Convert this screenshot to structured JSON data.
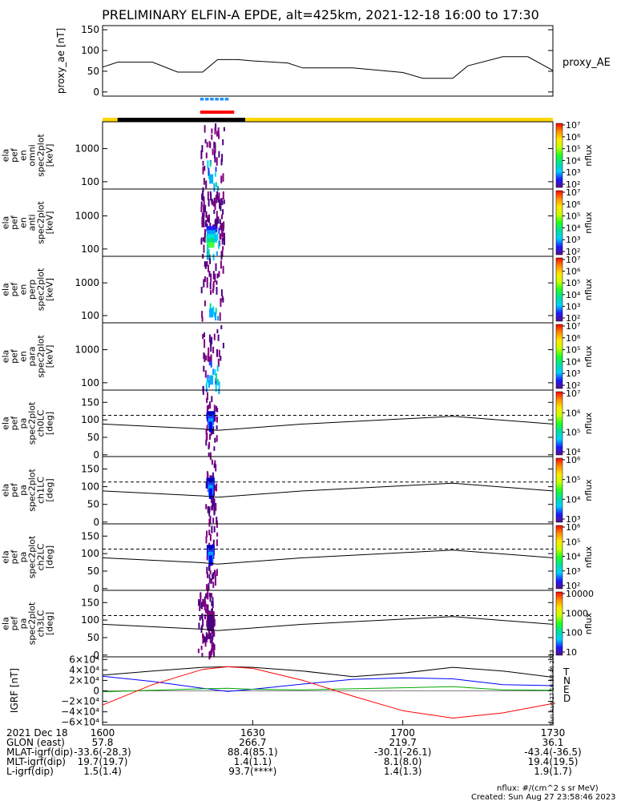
{
  "title": "PRELIMINARY ELFIN-A EPDE, alt=425km, 2021-12-18 16:00 to 17:30",
  "colors": {
    "trace": "#000000",
    "dash_blue": "#1e90ff",
    "bar_red": "#ff0000",
    "bar_yellow": "#ffd700",
    "bar_black": "#000000",
    "T": "#000000",
    "N": "#0000ff",
    "E": "#00aa00",
    "D": "#ff0000"
  },
  "colorbar_stops": [
    "#5a0d8f",
    "#1a1aff",
    "#00cfff",
    "#00e0a0",
    "#20ff20",
    "#c8ff00",
    "#ffe600",
    "#ff8c00",
    "#ff0000"
  ],
  "chart_data": [
    {
      "type": "line",
      "panel": "proxy_ae",
      "ylabel": "proxy_ae [nT]",
      "legend": "proxy_AE",
      "ylim": [
        -10,
        160
      ],
      "yticks": [
        "0",
        "50",
        "100",
        "150"
      ],
      "x_minutes": [
        0,
        3,
        10,
        15,
        20,
        23,
        27,
        30,
        37,
        40,
        50,
        60,
        64,
        70,
        73,
        80,
        85,
        90
      ],
      "values": [
        60,
        72,
        72,
        48,
        48,
        78,
        78,
        75,
        70,
        58,
        58,
        47,
        33,
        33,
        63,
        85,
        85,
        52
      ]
    },
    {
      "type": "heatmap",
      "panel": "en omni",
      "ylabel": [
        "ela",
        "pef",
        "en",
        "omni",
        "spec2plot",
        "[keV]"
      ],
      "yscale": "log",
      "ylim": [
        60,
        6500
      ],
      "yticks": [
        "100",
        "1000"
      ],
      "zlabel": "nflux",
      "zticks": [
        "10²",
        "10³",
        "10⁴",
        "10⁵",
        "10⁶",
        "10⁷"
      ]
    },
    {
      "type": "heatmap",
      "panel": "en anti",
      "ylabel": [
        "ela",
        "pef",
        "en",
        "anti",
        "spec2plot",
        "[keV]"
      ],
      "yscale": "log",
      "ylim": [
        60,
        6500
      ],
      "yticks": [
        "100",
        "1000"
      ],
      "zlabel": "nflux",
      "zticks": [
        "10²",
        "10³",
        "10⁴",
        "10⁵",
        "10⁶",
        "10⁷"
      ]
    },
    {
      "type": "heatmap",
      "panel": "en perp",
      "ylabel": [
        "ela",
        "pef",
        "en",
        "perp",
        "spec2plot",
        "[keV]"
      ],
      "yscale": "log",
      "ylim": [
        60,
        6500
      ],
      "yticks": [
        "100",
        "1000"
      ],
      "zlabel": "nflux",
      "zticks": [
        "10²",
        "10³",
        "10⁴",
        "10⁵",
        "10⁶",
        "10⁷"
      ]
    },
    {
      "type": "heatmap",
      "panel": "en para",
      "ylabel": [
        "ela",
        "pef",
        "en",
        "para",
        "spec2plot",
        "[keV]"
      ],
      "yscale": "log",
      "ylim": [
        60,
        6500
      ],
      "yticks": [
        "100",
        "1000"
      ],
      "zlabel": "nflux",
      "zticks": [
        "10²",
        "10³",
        "10⁴",
        "10⁵",
        "10⁶",
        "10⁷"
      ]
    },
    {
      "type": "heatmap",
      "panel": "pa ch0LC",
      "ylabel": [
        "ela",
        "pef",
        "pa",
        "spec2plot",
        "ch0LC",
        "[deg]"
      ],
      "yscale": "linear",
      "ylim": [
        -5,
        185
      ],
      "yticks": [
        "0",
        "50",
        "100",
        "150"
      ],
      "zlabel": "nflux",
      "zticks": [
        "10⁴",
        "10⁵",
        "10⁶",
        "10⁷"
      ]
    },
    {
      "type": "heatmap",
      "panel": "pa ch1LC",
      "ylabel": [
        "ela",
        "pef",
        "pa",
        "spec2plot",
        "ch1LC",
        "[deg]"
      ],
      "yscale": "linear",
      "ylim": [
        -5,
        185
      ],
      "yticks": [
        "0",
        "50",
        "100",
        "150"
      ],
      "zlabel": "nflux",
      "zticks": [
        "10³",
        "10⁴",
        "10⁵",
        "10⁶"
      ]
    },
    {
      "type": "heatmap",
      "panel": "pa ch2LC",
      "ylabel": [
        "ela",
        "pef",
        "pa",
        "spec2plot",
        "ch2LC",
        "[deg]"
      ],
      "yscale": "linear",
      "ylim": [
        -5,
        185
      ],
      "yticks": [
        "0",
        "50",
        "100",
        "150"
      ],
      "zlabel": "nflux",
      "zticks": [
        "10²",
        "10³",
        "10⁴",
        "10⁵",
        "10⁶"
      ]
    },
    {
      "type": "heatmap",
      "panel": "pa ch3LC",
      "ylabel": [
        "ela",
        "pef",
        "pa",
        "spec2plot",
        "ch3LC",
        "[deg]"
      ],
      "yscale": "linear",
      "ylim": [
        -5,
        185
      ],
      "yticks": [
        "0",
        "50",
        "100",
        "150"
      ],
      "zlabel": "nflux",
      "zticks": [
        "10",
        "100",
        "1000",
        "10000"
      ]
    },
    {
      "type": "line",
      "panel": "IGRF",
      "ylabel": "IGRF [nT]",
      "ylim": [
        -65000,
        65000
      ],
      "yticks": [
        "−6×10⁴",
        "−4×10⁴",
        "−2×10⁴",
        "0",
        "2×10⁴",
        "4×10⁴",
        "6×10⁴"
      ],
      "legend": [
        "T",
        "N",
        "E",
        "D"
      ],
      "x_minutes": [
        0,
        10,
        20,
        25,
        30,
        40,
        50,
        60,
        70,
        80,
        90
      ],
      "series": [
        {
          "name": "T",
          "values": [
            30000,
            38000,
            45000,
            46000,
            45000,
            38000,
            27000,
            34000,
            45000,
            38000,
            26000
          ]
        },
        {
          "name": "N",
          "values": [
            28000,
            18000,
            5000,
            -1000,
            3000,
            13000,
            22000,
            25000,
            23000,
            12000,
            10000
          ]
        },
        {
          "name": "E",
          "values": [
            -2000,
            1000,
            4000,
            5000,
            3000,
            2000,
            4000,
            6000,
            8000,
            2000,
            1000
          ]
        },
        {
          "name": "D",
          "values": [
            -27000,
            12000,
            41000,
            46000,
            43000,
            20000,
            -10000,
            -38000,
            -52000,
            -42000,
            -24000
          ]
        }
      ]
    }
  ],
  "side_stamp": "Sun Aug 27 16:58:46 2023",
  "x_axis": {
    "tick_labels": [
      "1600",
      "1630",
      "1700",
      "1730"
    ],
    "rows": [
      {
        "label": "2021 Dec 18",
        "values": [
          "1600",
          "1630",
          "1700",
          "1730"
        ]
      },
      {
        "label": "GLON (east)",
        "values": [
          "57.8",
          "266.7",
          "219.7",
          "36.1"
        ]
      },
      {
        "label": "MLAT-igrf(dip)",
        "values": [
          "-33.6(-28.3)",
          "88.4(85.1)",
          "-30.1(-26.1)",
          "-43.4(-36.5)"
        ]
      },
      {
        "label": "MLT-igrf(dip)",
        "values": [
          "19.7(19.7)",
          "1.4(1.1)",
          "8.1(8.0)",
          "19.4(19.5)"
        ]
      },
      {
        "label": "L-igrf(dip)",
        "values": [
          "1.5(1.4)",
          "93.7(****)",
          "1.4(1.3)",
          "1.9(1.7)"
        ]
      }
    ]
  },
  "footer": {
    "units": "nflux: #/(cm^2 s sr MeV)",
    "created": "Created: Sun Aug 27 23:58:46 2023"
  }
}
